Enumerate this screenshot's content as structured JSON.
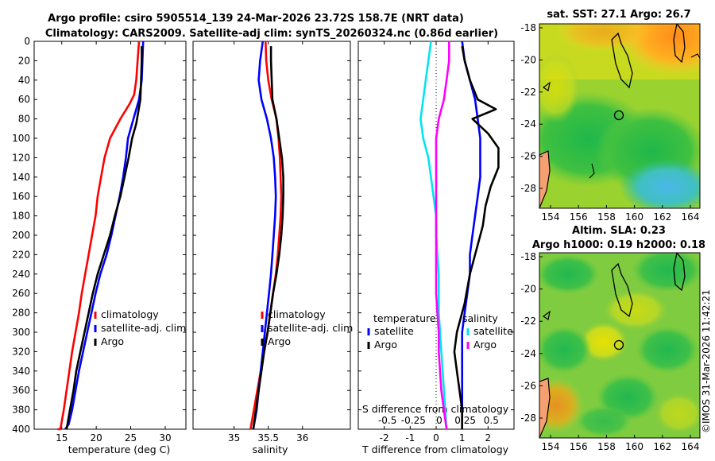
{
  "header": {
    "line1": "Argo profile: csiro 5905514_139 24-Mar-2026 23.72S 158.7E (NRT data)",
    "line2": "Climatology: CARS2009. Satellite-adj clim: synTS_20260324.nc (0.86d earlier)"
  },
  "watermark": "©IMOS 31-Mar-2026 11:42:21",
  "colors": {
    "climatology": "#ff0000",
    "satellite": "#0000ff",
    "argo": "#000000",
    "s_satellite": "#00e5ee",
    "s_argo": "#ff00ff"
  },
  "chart_data": [
    {
      "id": "temperature",
      "type": "line",
      "xlabel": "temperature (deg C)",
      "ylabel": "depth",
      "xlim": [
        11,
        33
      ],
      "ylim": [
        0,
        400
      ],
      "xticks": [
        15,
        20,
        25,
        30
      ],
      "yticks": [
        0,
        20,
        40,
        60,
        80,
        100,
        120,
        140,
        160,
        180,
        200,
        220,
        240,
        260,
        280,
        300,
        320,
        340,
        360,
        380,
        400
      ],
      "series": [
        {
          "name": "climatology",
          "color": "#ff0000",
          "x": [
            26.2,
            26.0,
            25.8,
            25.5,
            24.8,
            23.5,
            22.0,
            21.2,
            20.7,
            20.2,
            19.9,
            19.4,
            18.9,
            18.4,
            17.9,
            17.5,
            17.0,
            16.5,
            16.1,
            15.7,
            15.3,
            14.8,
            14.4
          ],
          "y": [
            0,
            20,
            40,
            55,
            65,
            80,
            100,
            120,
            140,
            160,
            180,
            200,
            220,
            240,
            260,
            280,
            300,
            320,
            340,
            360,
            380,
            400,
            400
          ]
        },
        {
          "name": "satellite-adj. clim",
          "color": "#0000ff",
          "x": [
            26.8,
            26.7,
            26.6,
            26.2,
            25.4,
            24.6,
            24.3,
            23.9,
            23.4,
            22.8,
            22.2,
            21.5,
            20.6,
            19.9,
            19.3,
            18.7,
            18.1,
            17.5,
            17.0,
            16.5,
            16.0,
            15.5
          ],
          "y": [
            0,
            20,
            40,
            60,
            80,
            100,
            120,
            140,
            160,
            180,
            200,
            220,
            240,
            260,
            280,
            300,
            320,
            340,
            360,
            380,
            395,
            400
          ]
        },
        {
          "name": "Argo",
          "color": "#000000",
          "x": [
            26.6,
            26.6,
            26.5,
            26.4,
            25.8,
            25.2,
            24.7,
            24.1,
            23.5,
            22.7,
            22.0,
            21.1,
            20.2,
            19.5,
            18.9,
            18.3,
            17.7,
            17.1,
            16.7,
            16.2,
            15.7
          ],
          "y": [
            5,
            20,
            40,
            60,
            85,
            100,
            120,
            140,
            160,
            180,
            200,
            220,
            240,
            260,
            280,
            300,
            320,
            340,
            360,
            380,
            400
          ]
        }
      ],
      "legend": {
        "position": "lower-right",
        "entries": [
          "climatology",
          "satellite-adj. clim",
          "Argo"
        ]
      }
    },
    {
      "id": "salinity",
      "type": "line",
      "xlabel": "salinity",
      "ylabel": "depth",
      "xlim": [
        34.4,
        36.7
      ],
      "ylim": [
        0,
        400
      ],
      "xticks": [
        35,
        35.5,
        36
      ],
      "yticks": [
        0,
        20,
        40,
        60,
        80,
        100,
        120,
        140,
        160,
        180,
        200,
        220,
        240,
        260,
        280,
        300,
        320,
        340,
        360,
        380,
        400
      ],
      "series": [
        {
          "name": "climatology",
          "color": "#ff0000",
          "x": [
            35.46,
            35.47,
            35.5,
            35.55,
            35.62,
            35.65,
            35.67,
            35.68,
            35.69,
            35.68,
            35.66,
            35.64,
            35.61,
            35.57,
            35.53,
            35.49,
            35.44,
            35.39,
            35.34,
            35.29,
            35.24
          ],
          "y": [
            0,
            20,
            40,
            60,
            80,
            100,
            120,
            140,
            160,
            180,
            200,
            220,
            240,
            260,
            280,
            300,
            320,
            340,
            360,
            380,
            400
          ]
        },
        {
          "name": "satellite-adj. clim",
          "color": "#0000ff",
          "x": [
            35.42,
            35.38,
            35.36,
            35.4,
            35.48,
            35.54,
            35.58,
            35.6,
            35.61,
            35.6,
            35.58,
            35.56,
            35.54,
            35.51,
            35.48,
            35.45,
            35.42,
            35.39,
            35.36,
            35.33,
            35.28
          ],
          "y": [
            0,
            20,
            40,
            60,
            80,
            100,
            120,
            140,
            160,
            180,
            200,
            220,
            240,
            260,
            280,
            300,
            320,
            340,
            360,
            380,
            400
          ]
        },
        {
          "name": "Argo",
          "color": "#000000",
          "x": [
            35.54,
            35.54,
            35.55,
            35.56,
            35.62,
            35.66,
            35.7,
            35.72,
            35.72,
            35.71,
            35.69,
            35.66,
            35.62,
            35.57,
            35.53,
            35.49,
            35.44,
            35.4,
            35.36,
            35.32,
            35.28
          ],
          "y": [
            5,
            20,
            40,
            60,
            80,
            100,
            120,
            140,
            160,
            180,
            200,
            220,
            240,
            260,
            280,
            300,
            320,
            340,
            360,
            380,
            400
          ]
        }
      ],
      "legend": {
        "position": "lower-right",
        "entries": [
          "climatology",
          "satellite-adj. clim",
          "Argo"
        ]
      }
    },
    {
      "id": "differences",
      "type": "line",
      "xlabel": "T difference from climatology",
      "x2label": "S difference from climatology",
      "ylabel": "depth",
      "xlim": [
        -3,
        3
      ],
      "ylim": [
        0,
        400
      ],
      "xticks": [
        -2,
        -1,
        0,
        1,
        2
      ],
      "x2ticks": [
        "-0.5",
        "-0.25",
        "0",
        "0.25",
        "0.5"
      ],
      "yticks": [
        0,
        20,
        40,
        60,
        80,
        100,
        120,
        140,
        160,
        180,
        200,
        220,
        240,
        260,
        280,
        300,
        320,
        340,
        360,
        380,
        400
      ],
      "zero_line_x": 0,
      "series": [
        {
          "name": "T satellite",
          "color": "#0000ff",
          "x": [
            1.0,
            1.1,
            1.3,
            1.5,
            1.6,
            1.7,
            1.7,
            1.7,
            1.6,
            1.5,
            1.4,
            1.3,
            1.3,
            1.2,
            1.1,
            1.0,
            1.0,
            1.0,
            1.0,
            1.0
          ],
          "y": [
            0,
            20,
            40,
            60,
            80,
            100,
            120,
            140,
            160,
            180,
            200,
            220,
            240,
            260,
            280,
            300,
            320,
            340,
            360,
            400
          ]
        },
        {
          "name": "T Argo",
          "color": "#000000",
          "x": [
            1.0,
            1.1,
            1.3,
            1.6,
            2.3,
            1.4,
            2.0,
            2.4,
            2.4,
            2.1,
            1.9,
            1.8,
            1.6,
            1.3,
            1.1,
            0.8,
            0.7,
            0.8,
            0.9,
            1.0,
            1.0
          ],
          "y": [
            5,
            20,
            40,
            60,
            70,
            80,
            95,
            110,
            130,
            150,
            170,
            190,
            210,
            240,
            270,
            300,
            320,
            340,
            360,
            380,
            400
          ]
        },
        {
          "name": "S satellite",
          "color": "#00e5ee",
          "x": [
            -0.2,
            -0.3,
            -0.4,
            -0.5,
            -0.6,
            -0.5,
            -0.3,
            -0.2,
            -0.1,
            0.0,
            0.0,
            0.05,
            0.1,
            0.1,
            0.1,
            0.15,
            0.2,
            0.25,
            0.3,
            0.35,
            0.4
          ],
          "y": [
            0,
            20,
            40,
            60,
            80,
            100,
            120,
            140,
            160,
            180,
            200,
            220,
            240,
            260,
            280,
            300,
            320,
            340,
            360,
            380,
            400
          ]
        },
        {
          "name": "S Argo",
          "color": "#ff00ff",
          "x": [
            0.5,
            0.5,
            0.4,
            0.3,
            0.1,
            0.0,
            0.0,
            0.0,
            0.0,
            0.0,
            0.0,
            0.0,
            0.0,
            0.0,
            0.05,
            0.1,
            0.1,
            0.15,
            0.2,
            0.3,
            0.4
          ],
          "y": [
            0,
            20,
            40,
            60,
            80,
            100,
            120,
            140,
            160,
            180,
            200,
            220,
            240,
            260,
            280,
            300,
            320,
            340,
            360,
            380,
            400
          ]
        }
      ],
      "legend_left": {
        "title": "temperature",
        "entries": [
          "satellite",
          "Argo"
        ]
      },
      "legend_right": {
        "title": "salinity",
        "entries": [
          "satellite",
          "Argo"
        ]
      }
    },
    {
      "id": "sst-map",
      "type": "heatmap",
      "title": "sat. SST: 27.1 Argo: 26.7",
      "xticks": [
        "154",
        "156",
        "158",
        "160",
        "162",
        "164"
      ],
      "yticks": [
        "-18",
        "-20",
        "-22",
        "-24",
        "-26",
        "-28"
      ],
      "marker": "circle at float position (158.7E, 23.7S)"
    },
    {
      "id": "sla-map",
      "type": "heatmap",
      "title_line1": "Altim. SLA: 0.23",
      "title_line2": "Argo h1000: 0.19 h2000: 0.18",
      "xticks": [
        "154",
        "156",
        "158",
        "160",
        "162",
        "164"
      ],
      "yticks": [
        "-18",
        "-20",
        "-22",
        "-24",
        "-26",
        "-28"
      ],
      "marker": "circle at float position (158.7E, 23.7S)"
    }
  ]
}
